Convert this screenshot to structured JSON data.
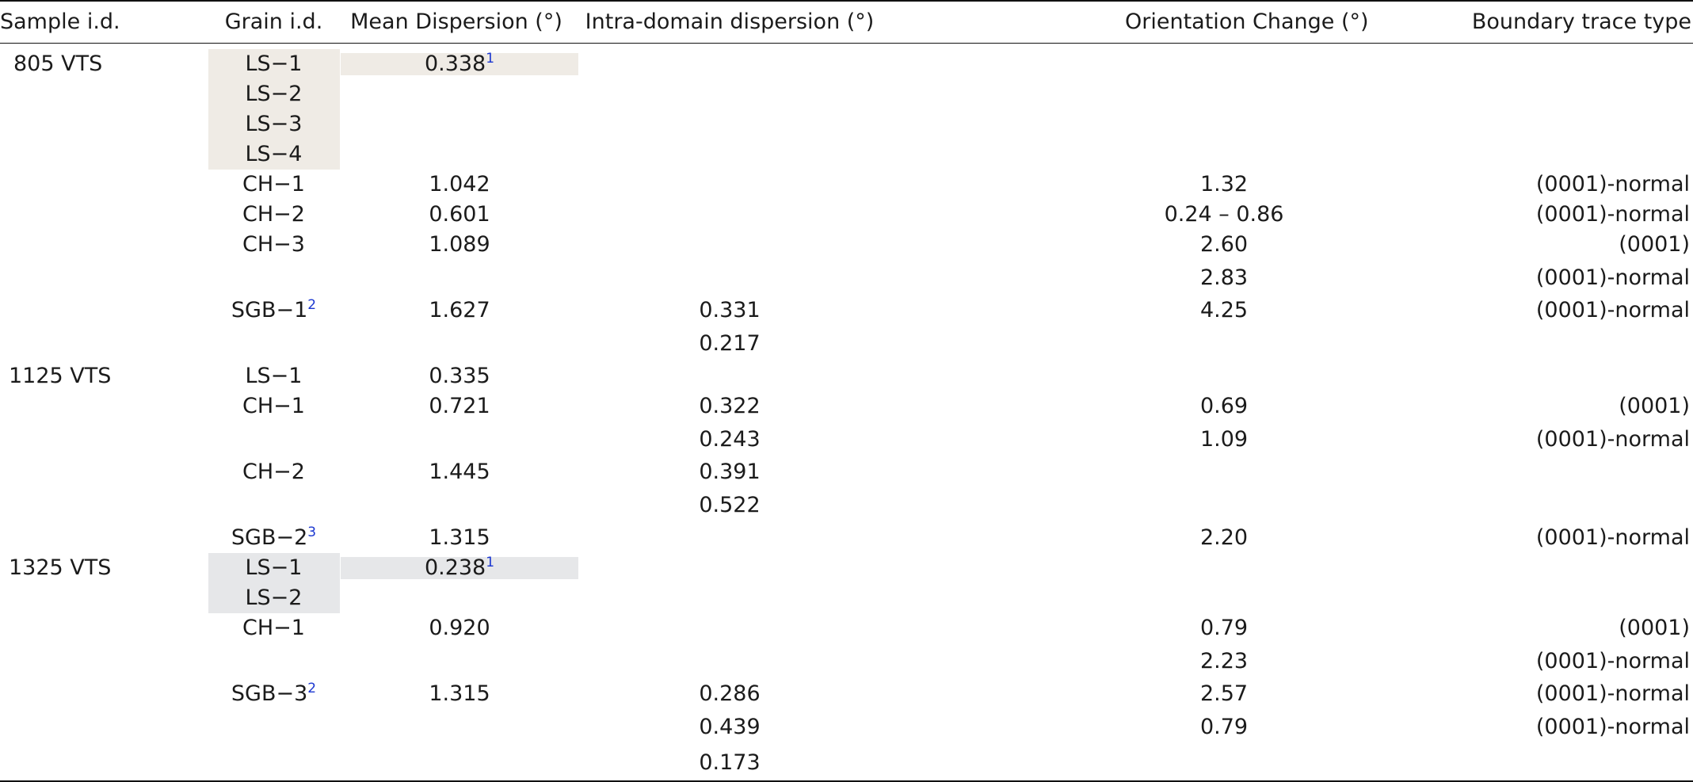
{
  "table": {
    "headers": [
      "Sample i.d.",
      "Grain i.d.",
      "Mean Dispersion (°)",
      "Intra-domain dispersion (°)",
      "Orientation Change (°)",
      "Boundary trace type"
    ],
    "rows": [
      {
        "sample": "805 VTS",
        "grain": "LS−1",
        "grain_note": "",
        "mean": "0.338",
        "mean_note": "1",
        "intra": "",
        "change": "",
        "trace": "",
        "hl": "warm"
      },
      {
        "sample": "",
        "grain": "LS−2",
        "grain_note": "",
        "mean": "",
        "mean_note": "",
        "intra": "",
        "change": "",
        "trace": "",
        "hl": "warm"
      },
      {
        "sample": "",
        "grain": "LS−3",
        "grain_note": "",
        "mean": "",
        "mean_note": "",
        "intra": "",
        "change": "",
        "trace": "",
        "hl": "warm"
      },
      {
        "sample": "",
        "grain": "LS−4",
        "grain_note": "",
        "mean": "",
        "mean_note": "",
        "intra": "",
        "change": "",
        "trace": "",
        "hl": "warm"
      },
      {
        "sample": "",
        "grain": "CH−1",
        "grain_note": "",
        "mean": "1.042",
        "mean_note": "",
        "intra": "",
        "change": "1.32",
        "trace": "(0001)-normal",
        "hl": ""
      },
      {
        "sample": "",
        "grain": "CH−2",
        "grain_note": "",
        "mean": "0.601",
        "mean_note": "",
        "intra": "",
        "change": "0.24 – 0.86",
        "trace": "(0001)-normal",
        "hl": ""
      },
      {
        "sample": "",
        "grain": "CH−3",
        "grain_note": "",
        "mean": "1.089",
        "mean_note": "",
        "intra": "",
        "change": "2.60",
        "trace": "(0001)",
        "hl": ""
      },
      {
        "sample": "",
        "grain": "",
        "grain_note": "",
        "mean": "",
        "mean_note": "",
        "intra": "",
        "change": "2.83",
        "trace": "(0001)-normal",
        "hl": ""
      },
      {
        "sample": "",
        "grain": "SGB−1",
        "grain_note": "2",
        "mean": "1.627",
        "mean_note": "",
        "intra": "0.331",
        "change": "4.25",
        "trace": "(0001)-normal",
        "hl": ""
      },
      {
        "sample": "",
        "grain": "",
        "grain_note": "",
        "mean": "",
        "mean_note": "",
        "intra": "0.217",
        "change": "",
        "trace": "",
        "hl": ""
      },
      {
        "sample": "1125 VTS",
        "grain": "LS−1",
        "grain_note": "",
        "mean": "0.335",
        "mean_note": "",
        "intra": "",
        "change": "",
        "trace": "",
        "hl": ""
      },
      {
        "sample": "",
        "grain": "CH−1",
        "grain_note": "",
        "mean": "0.721",
        "mean_note": "",
        "intra": "0.322",
        "change": "0.69",
        "trace": "(0001)",
        "hl": ""
      },
      {
        "sample": "",
        "grain": "",
        "grain_note": "",
        "mean": "",
        "mean_note": "",
        "intra": "0.243",
        "change": "1.09",
        "trace": "(0001)-normal",
        "hl": ""
      },
      {
        "sample": "",
        "grain": "CH−2",
        "grain_note": "",
        "mean": "1.445",
        "mean_note": "",
        "intra": "0.391",
        "change": "",
        "trace": "",
        "hl": ""
      },
      {
        "sample": "",
        "grain": "",
        "grain_note": "",
        "mean": "",
        "mean_note": "",
        "intra": "0.522",
        "change": "",
        "trace": "",
        "hl": ""
      },
      {
        "sample": "",
        "grain": "SGB−2",
        "grain_note": "3",
        "mean": "1.315",
        "mean_note": "",
        "intra": "",
        "change": "2.20",
        "trace": "(0001)-normal",
        "hl": ""
      },
      {
        "sample": "1325 VTS",
        "grain": "LS−1",
        "grain_note": "",
        "mean": "0.238",
        "mean_note": "1",
        "intra": "",
        "change": "",
        "trace": "",
        "hl": "cool"
      },
      {
        "sample": "",
        "grain": "LS−2",
        "grain_note": "",
        "mean": "",
        "mean_note": "",
        "intra": "",
        "change": "",
        "trace": "",
        "hl": "cool"
      },
      {
        "sample": "",
        "grain": "CH−1",
        "grain_note": "",
        "mean": "0.920",
        "mean_note": "",
        "intra": "",
        "change": "0.79",
        "trace": "(0001)",
        "hl": ""
      },
      {
        "sample": "",
        "grain": "",
        "grain_note": "",
        "mean": "",
        "mean_note": "",
        "intra": "",
        "change": "2.23",
        "trace": "(0001)-normal",
        "hl": ""
      },
      {
        "sample": "",
        "grain": "SGB−3",
        "grain_note": "2",
        "mean": "1.315",
        "mean_note": "",
        "intra": "0.286",
        "change": "2.57",
        "trace": "(0001)-normal",
        "hl": ""
      },
      {
        "sample": "",
        "grain": "",
        "grain_note": "",
        "mean": "",
        "mean_note": "",
        "intra": "0.439",
        "change": "0.79",
        "trace": "(0001)-normal",
        "hl": ""
      },
      {
        "sample": "",
        "grain": "",
        "grain_note": "",
        "mean": "",
        "mean_note": "",
        "intra": "0.173",
        "change": "",
        "trace": "",
        "hl": ""
      }
    ]
  }
}
